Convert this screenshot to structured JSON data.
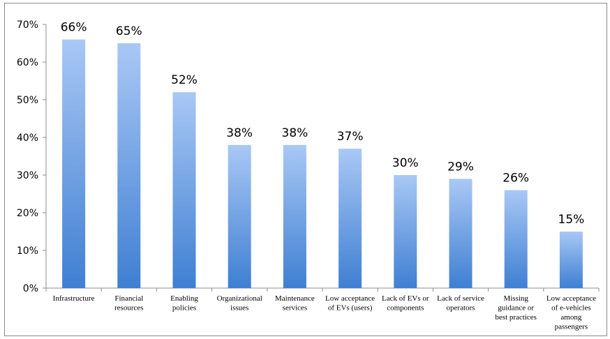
{
  "chart_data": {
    "type": "bar",
    "title": "",
    "xlabel": "",
    "ylabel": "",
    "ylim": [
      0,
      0.7
    ],
    "y_ticks": [
      "0%",
      "10%",
      "20%",
      "30%",
      "40%",
      "50%",
      "60%",
      "70%"
    ],
    "grid": false,
    "categories": [
      "Infrastructure",
      "Financial resources",
      "Enabling policies",
      "Organizational issues",
      "Maintenance services",
      "Low acceptance of EVs (users)",
      "Lack of EVs or components",
      "Lack of service operators",
      "Missing guidance or best practices",
      "Low acceptance of e-vehicles among passengers"
    ],
    "category_lines": [
      [
        "Infrastructure"
      ],
      [
        "Financial",
        "resources"
      ],
      [
        "Enabling",
        "policies"
      ],
      [
        "Organizational",
        "issues"
      ],
      [
        "Maintenance",
        "services"
      ],
      [
        "Low acceptance",
        "of EVs (users)"
      ],
      [
        "Lack of EVs or",
        "components"
      ],
      [
        "Lack of service",
        "operators"
      ],
      [
        "Missing",
        "guidance or",
        "best practices"
      ],
      [
        "Low acceptance",
        "of e-vehicles",
        "among",
        "passengers"
      ]
    ],
    "values": [
      0.66,
      0.65,
      0.52,
      0.38,
      0.38,
      0.37,
      0.3,
      0.29,
      0.26,
      0.15
    ],
    "data_labels": [
      "66%",
      "65%",
      "52%",
      "38%",
      "38%",
      "37%",
      "30%",
      "29%",
      "26%",
      "15%"
    ],
    "bar_color_top": "#a9c8f5",
    "bar_color_bottom": "#3f7fd2"
  }
}
